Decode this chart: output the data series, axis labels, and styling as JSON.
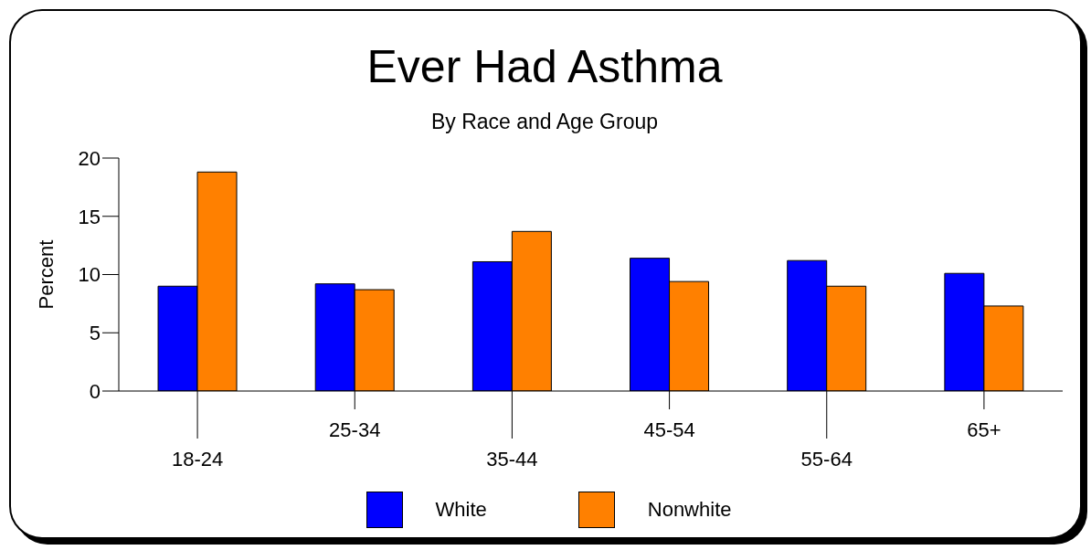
{
  "chart_data": {
    "type": "bar",
    "title": "Ever Had Asthma",
    "subtitle": "By Race and Age Group",
    "ylabel": "Percent",
    "categories": [
      "18-24",
      "25-34",
      "35-44",
      "45-54",
      "55-64",
      "65+"
    ],
    "series": [
      {
        "name": "White",
        "color": "#0000ff",
        "values": [
          9.0,
          9.2,
          11.1,
          11.4,
          11.2,
          10.1
        ]
      },
      {
        "name": "Nonwhite",
        "color": "#ff8000",
        "values": [
          18.8,
          8.7,
          13.7,
          9.4,
          9.0,
          7.3
        ]
      }
    ],
    "ylim": [
      0,
      20
    ],
    "yticks": [
      0,
      5,
      10,
      15,
      20
    ],
    "legend": "bottom"
  }
}
